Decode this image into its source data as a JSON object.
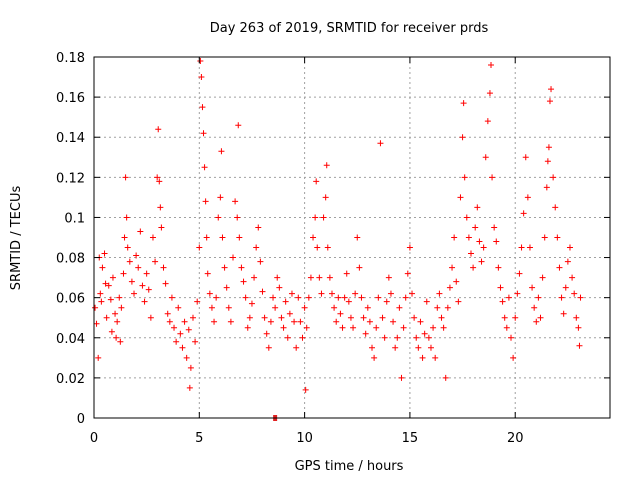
{
  "chart_data": {
    "type": "scatter",
    "title": "Day 263 of 2019, SRMTID for receiver prds",
    "xlabel": "GPS time / hours",
    "ylabel": "SRMTID / TECUs",
    "xlim": [
      0,
      24.5
    ],
    "ylim": [
      0,
      0.18
    ],
    "xticks": [
      0,
      5,
      10,
      15,
      20
    ],
    "xtick_labels": [
      "0",
      "5",
      "10",
      "15",
      "20"
    ],
    "yticks": [
      0,
      0.02,
      0.04,
      0.06,
      0.08,
      0.1,
      0.12,
      0.14,
      0.16,
      0.18
    ],
    "ytick_labels": [
      "0",
      "0.02",
      "0.04",
      "0.06",
      "0.08",
      "0.1",
      "0.12",
      "0.14",
      "0.16",
      "0.18"
    ],
    "grid": true,
    "marker": "+",
    "color": "#ff0000",
    "series": [
      {
        "name": "prds",
        "points": [
          [
            0.05,
            0.055
          ],
          [
            0.12,
            0.047
          ],
          [
            0.2,
            0.03
          ],
          [
            0.25,
            0.08
          ],
          [
            0.3,
            0.062
          ],
          [
            0.35,
            0.058
          ],
          [
            0.4,
            0.075
          ],
          [
            0.5,
            0.082
          ],
          [
            0.55,
            0.067
          ],
          [
            0.6,
            0.05
          ],
          [
            0.7,
            0.066
          ],
          [
            0.8,
            0.059
          ],
          [
            0.85,
            0.043
          ],
          [
            0.9,
            0.07
          ],
          [
            1.0,
            0.052
          ],
          [
            1.05,
            0.04
          ],
          [
            1.1,
            0.048
          ],
          [
            1.2,
            0.06
          ],
          [
            1.25,
            0.038
          ],
          [
            1.3,
            0.055
          ],
          [
            1.4,
            0.072
          ],
          [
            1.45,
            0.09
          ],
          [
            1.5,
            0.12
          ],
          [
            1.55,
            0.1
          ],
          [
            1.6,
            0.085
          ],
          [
            1.7,
            0.078
          ],
          [
            1.8,
            0.068
          ],
          [
            1.9,
            0.062
          ],
          [
            2.0,
            0.081
          ],
          [
            2.1,
            0.075
          ],
          [
            2.2,
            0.093
          ],
          [
            2.3,
            0.066
          ],
          [
            2.4,
            0.058
          ],
          [
            2.5,
            0.072
          ],
          [
            2.6,
            0.064
          ],
          [
            2.7,
            0.05
          ],
          [
            2.8,
            0.09
          ],
          [
            2.9,
            0.078
          ],
          [
            3.0,
            0.12
          ],
          [
            3.05,
            0.144
          ],
          [
            3.1,
            0.118
          ],
          [
            3.15,
            0.105
          ],
          [
            3.2,
            0.095
          ],
          [
            3.3,
            0.075
          ],
          [
            3.4,
            0.067
          ],
          [
            3.5,
            0.052
          ],
          [
            3.6,
            0.048
          ],
          [
            3.7,
            0.06
          ],
          [
            3.8,
            0.045
          ],
          [
            3.9,
            0.038
          ],
          [
            4.0,
            0.055
          ],
          [
            4.1,
            0.042
          ],
          [
            4.2,
            0.035
          ],
          [
            4.3,
            0.048
          ],
          [
            4.4,
            0.03
          ],
          [
            4.5,
            0.044
          ],
          [
            4.55,
            0.015
          ],
          [
            4.6,
            0.025
          ],
          [
            4.7,
            0.05
          ],
          [
            4.8,
            0.038
          ],
          [
            4.9,
            0.058
          ],
          [
            5.0,
            0.085
          ],
          [
            5.05,
            0.178
          ],
          [
            5.1,
            0.17
          ],
          [
            5.15,
            0.155
          ],
          [
            5.2,
            0.142
          ],
          [
            5.25,
            0.125
          ],
          [
            5.3,
            0.108
          ],
          [
            5.35,
            0.09
          ],
          [
            5.4,
            0.072
          ],
          [
            5.5,
            0.062
          ],
          [
            5.6,
            0.055
          ],
          [
            5.7,
            0.048
          ],
          [
            5.8,
            0.06
          ],
          [
            5.9,
            0.1
          ],
          [
            6.0,
            0.11
          ],
          [
            6.05,
            0.133
          ],
          [
            6.1,
            0.09
          ],
          [
            6.2,
            0.075
          ],
          [
            6.3,
            0.065
          ],
          [
            6.4,
            0.055
          ],
          [
            6.5,
            0.048
          ],
          [
            6.6,
            0.08
          ],
          [
            6.7,
            0.108
          ],
          [
            6.8,
            0.1
          ],
          [
            6.85,
            0.146
          ],
          [
            6.9,
            0.09
          ],
          [
            7.0,
            0.075
          ],
          [
            7.1,
            0.068
          ],
          [
            7.2,
            0.06
          ],
          [
            7.3,
            0.045
          ],
          [
            7.4,
            0.05
          ],
          [
            7.5,
            0.057
          ],
          [
            7.6,
            0.07
          ],
          [
            7.7,
            0.085
          ],
          [
            7.8,
            0.095
          ],
          [
            7.9,
            0.078
          ],
          [
            8.0,
            0.063
          ],
          [
            8.1,
            0.05
          ],
          [
            8.2,
            0.042
          ],
          [
            8.3,
            0.035
          ],
          [
            8.4,
            0.048
          ],
          [
            8.5,
            0.06
          ],
          [
            8.6,
            0.055
          ],
          [
            8.7,
            0.07
          ],
          [
            8.8,
            0.065
          ],
          [
            8.9,
            0.05
          ],
          [
            9.0,
            0.045
          ],
          [
            9.1,
            0.058
          ],
          [
            9.2,
            0.04
          ],
          [
            9.3,
            0.052
          ],
          [
            9.4,
            0.062
          ],
          [
            9.5,
            0.048
          ],
          [
            9.6,
            0.035
          ],
          [
            9.7,
            0.06
          ],
          [
            9.8,
            0.048
          ],
          [
            9.9,
            0.04
          ],
          [
            10.0,
            0.055
          ],
          [
            10.05,
            0.014
          ],
          [
            10.1,
            0.045
          ],
          [
            10.2,
            0.06
          ],
          [
            10.3,
            0.07
          ],
          [
            10.4,
            0.09
          ],
          [
            10.5,
            0.1
          ],
          [
            10.55,
            0.118
          ],
          [
            10.6,
            0.085
          ],
          [
            10.7,
            0.07
          ],
          [
            10.8,
            0.062
          ],
          [
            10.9,
            0.1
          ],
          [
            11.0,
            0.11
          ],
          [
            11.05,
            0.126
          ],
          [
            11.1,
            0.085
          ],
          [
            11.2,
            0.07
          ],
          [
            11.3,
            0.062
          ],
          [
            11.4,
            0.055
          ],
          [
            11.5,
            0.048
          ],
          [
            11.6,
            0.06
          ],
          [
            11.7,
            0.052
          ],
          [
            11.8,
            0.045
          ],
          [
            11.9,
            0.06
          ],
          [
            12.0,
            0.072
          ],
          [
            12.1,
            0.058
          ],
          [
            12.2,
            0.05
          ],
          [
            12.3,
            0.045
          ],
          [
            12.4,
            0.062
          ],
          [
            12.5,
            0.09
          ],
          [
            12.6,
            0.075
          ],
          [
            12.7,
            0.06
          ],
          [
            12.8,
            0.05
          ],
          [
            12.9,
            0.042
          ],
          [
            13.0,
            0.055
          ],
          [
            13.1,
            0.048
          ],
          [
            13.2,
            0.035
          ],
          [
            13.3,
            0.03
          ],
          [
            13.4,
            0.045
          ],
          [
            13.5,
            0.06
          ],
          [
            13.6,
            0.137
          ],
          [
            13.7,
            0.05
          ],
          [
            13.8,
            0.04
          ],
          [
            13.9,
            0.058
          ],
          [
            14.0,
            0.07
          ],
          [
            14.1,
            0.062
          ],
          [
            14.2,
            0.048
          ],
          [
            14.3,
            0.035
          ],
          [
            14.4,
            0.04
          ],
          [
            14.5,
            0.055
          ],
          [
            14.6,
            0.02
          ],
          [
            14.7,
            0.045
          ],
          [
            14.8,
            0.06
          ],
          [
            14.9,
            0.072
          ],
          [
            15.0,
            0.085
          ],
          [
            15.1,
            0.062
          ],
          [
            15.2,
            0.05
          ],
          [
            15.3,
            0.04
          ],
          [
            15.4,
            0.035
          ],
          [
            15.5,
            0.048
          ],
          [
            15.6,
            0.03
          ],
          [
            15.7,
            0.042
          ],
          [
            15.8,
            0.058
          ],
          [
            15.9,
            0.04
          ],
          [
            16.0,
            0.035
          ],
          [
            16.1,
            0.045
          ],
          [
            16.2,
            0.03
          ],
          [
            16.3,
            0.055
          ],
          [
            16.4,
            0.062
          ],
          [
            16.5,
            0.05
          ],
          [
            16.6,
            0.045
          ],
          [
            16.7,
            0.02
          ],
          [
            16.8,
            0.055
          ],
          [
            16.9,
            0.065
          ],
          [
            17.0,
            0.075
          ],
          [
            17.1,
            0.09
          ],
          [
            17.2,
            0.068
          ],
          [
            17.3,
            0.058
          ],
          [
            17.4,
            0.11
          ],
          [
            17.5,
            0.14
          ],
          [
            17.55,
            0.157
          ],
          [
            17.6,
            0.12
          ],
          [
            17.7,
            0.1
          ],
          [
            17.8,
            0.09
          ],
          [
            17.9,
            0.082
          ],
          [
            18.0,
            0.075
          ],
          [
            18.1,
            0.095
          ],
          [
            18.2,
            0.105
          ],
          [
            18.3,
            0.088
          ],
          [
            18.4,
            0.078
          ],
          [
            18.5,
            0.085
          ],
          [
            18.6,
            0.13
          ],
          [
            18.7,
            0.148
          ],
          [
            18.8,
            0.162
          ],
          [
            18.85,
            0.176
          ],
          [
            18.9,
            0.12
          ],
          [
            19.0,
            0.095
          ],
          [
            19.1,
            0.088
          ],
          [
            19.2,
            0.075
          ],
          [
            19.3,
            0.065
          ],
          [
            19.4,
            0.058
          ],
          [
            19.5,
            0.05
          ],
          [
            19.6,
            0.045
          ],
          [
            19.7,
            0.06
          ],
          [
            19.8,
            0.04
          ],
          [
            19.9,
            0.03
          ],
          [
            20.0,
            0.05
          ],
          [
            20.1,
            0.062
          ],
          [
            20.2,
            0.072
          ],
          [
            20.3,
            0.085
          ],
          [
            20.4,
            0.102
          ],
          [
            20.5,
            0.13
          ],
          [
            20.6,
            0.11
          ],
          [
            20.7,
            0.085
          ],
          [
            20.8,
            0.065
          ],
          [
            20.9,
            0.055
          ],
          [
            21.0,
            0.048
          ],
          [
            21.1,
            0.06
          ],
          [
            21.2,
            0.05
          ],
          [
            21.3,
            0.07
          ],
          [
            21.4,
            0.09
          ],
          [
            21.5,
            0.115
          ],
          [
            21.55,
            0.128
          ],
          [
            21.6,
            0.135
          ],
          [
            21.65,
            0.158
          ],
          [
            21.7,
            0.164
          ],
          [
            21.8,
            0.12
          ],
          [
            21.9,
            0.105
          ],
          [
            22.0,
            0.09
          ],
          [
            22.1,
            0.075
          ],
          [
            22.2,
            0.06
          ],
          [
            22.3,
            0.052
          ],
          [
            22.4,
            0.065
          ],
          [
            22.5,
            0.078
          ],
          [
            22.6,
            0.085
          ],
          [
            22.7,
            0.07
          ],
          [
            22.8,
            0.062
          ],
          [
            22.9,
            0.05
          ],
          [
            23.0,
            0.045
          ],
          [
            23.05,
            0.036
          ],
          [
            23.1,
            0.06
          ]
        ]
      }
    ],
    "annotations": [
      {
        "type": "marker-box",
        "x": 8.6,
        "y": 0,
        "color": "#e02020"
      }
    ]
  }
}
